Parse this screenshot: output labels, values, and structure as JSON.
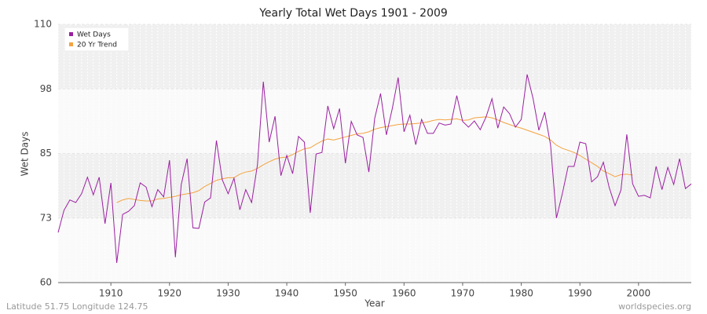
{
  "chart_data": {
    "type": "line",
    "title": "Yearly Total Wet Days 1901 - 2009",
    "x_label": "Year",
    "y_label": "Wet Days",
    "footer_left": "Latitude 51.75 Longitude 124.75",
    "footer_right": "worldspecies.org",
    "legend": "upper left",
    "grid": true,
    "xlim": [
      1901,
      2009
    ],
    "xticks": [
      1910,
      1920,
      1930,
      1940,
      1950,
      1960,
      1970,
      1980,
      1990,
      2000
    ],
    "ylim": [
      60,
      110
    ],
    "yticks": [
      60,
      {
        "value": 72.5,
        "label": "73"
      },
      85,
      {
        "value": 97.5,
        "label": "98"
      },
      110
    ],
    "x": [
      1901,
      1902,
      1903,
      1904,
      1905,
      1906,
      1907,
      1908,
      1909,
      1910,
      1911,
      1912,
      1913,
      1914,
      1915,
      1916,
      1917,
      1918,
      1919,
      1920,
      1921,
      1922,
      1923,
      1924,
      1925,
      1926,
      1927,
      1928,
      1929,
      1930,
      1931,
      1932,
      1933,
      1934,
      1935,
      1936,
      1937,
      1938,
      1939,
      1940,
      1941,
      1942,
      1943,
      1944,
      1945,
      1946,
      1947,
      1948,
      1949,
      1950,
      1951,
      1952,
      1953,
      1954,
      1955,
      1956,
      1957,
      1958,
      1959,
      1960,
      1961,
      1962,
      1963,
      1964,
      1965,
      1966,
      1967,
      1968,
      1969,
      1970,
      1971,
      1972,
      1973,
      1974,
      1975,
      1976,
      1977,
      1978,
      1979,
      1980,
      1981,
      1982,
      1983,
      1984,
      1985,
      1986,
      1987,
      1988,
      1989,
      1990,
      1991,
      1992,
      1993,
      1994,
      1995,
      1996,
      1997,
      1998,
      1999,
      2000,
      2001,
      2002,
      2003,
      2004,
      2005,
      2006,
      2007,
      2008,
      2009
    ],
    "series": [
      {
        "name": "Wet Days",
        "color": "#9b1fa1",
        "values": [
          69.7,
          74,
          76,
          75.5,
          77.2,
          80.4,
          77,
          80.4,
          71.4,
          79.3,
          63.8,
          73.2,
          73.8,
          74.9,
          79.3,
          78.5,
          74.7,
          78,
          76.6,
          83.7,
          64.9,
          79,
          84,
          70.6,
          70.5,
          75.6,
          76.4,
          87.5,
          79.9,
          77.2,
          80.2,
          74.1,
          78,
          75.5,
          82.8,
          98.9,
          87.2,
          92.2,
          80.7,
          84.6,
          81.1,
          88.3,
          87.2,
          73.5,
          84.9,
          85.2,
          94.2,
          89.8,
          93.7,
          83.1,
          91.2,
          88.6,
          88.1,
          81.4,
          91.8,
          96.6,
          88.6,
          93.7,
          99.7,
          89.2,
          92.4,
          86.7,
          91.6,
          88.9,
          88.9,
          90.9,
          90.5,
          90.7,
          96.2,
          91.2,
          90.1,
          91.3,
          89.6,
          92.1,
          95.6,
          89.9,
          94,
          92.7,
          90.1,
          91.6,
          100.3,
          95.7,
          89.5,
          93,
          86.6,
          72.5,
          77.2,
          82.5,
          82.5,
          87.2,
          86.9,
          79.5,
          80.5,
          83.3,
          78.4,
          74.9,
          77.9,
          88.7,
          79.1,
          76.7,
          76.9,
          76.4,
          82.5,
          78,
          82.3,
          79,
          84,
          78.2,
          79.1
        ]
      },
      {
        "name": "20 Yr Trend",
        "color": "#f4a340",
        "values": [
          null,
          null,
          null,
          null,
          null,
          null,
          null,
          null,
          null,
          null,
          75.5,
          76,
          76.3,
          76.1,
          75.9,
          75.8,
          75.8,
          76.2,
          76.3,
          76.5,
          76.7,
          77,
          77.2,
          77.4,
          77.8,
          78.6,
          79.2,
          79.8,
          80.1,
          80.3,
          80.3,
          81,
          81.4,
          81.6,
          82.1,
          82.8,
          83.4,
          83.9,
          84.2,
          84.3,
          84.8,
          85.4,
          85.9,
          86.1,
          86.8,
          87.4,
          87.8,
          87.6,
          87.9,
          88.2,
          88.5,
          88.8,
          88.9,
          89.2,
          89.7,
          90,
          90.2,
          90.4,
          90.6,
          90.7,
          90.7,
          90.8,
          90.9,
          91.1,
          91.4,
          91.6,
          91.5,
          91.6,
          91.7,
          91.4,
          91.5,
          91.9,
          92,
          92.1,
          91.9,
          91.5,
          91,
          90.6,
          90.2,
          89.9,
          89.5,
          89.1,
          88.7,
          88.3,
          87.6,
          86.6,
          86,
          85.6,
          85.2,
          84.6,
          83.9,
          83.2,
          82.5,
          81.6,
          81.1,
          80.5,
          80.9,
          81,
          80.8,
          null,
          null,
          null,
          null,
          null,
          null,
          null,
          null,
          null,
          null
        ]
      }
    ]
  }
}
